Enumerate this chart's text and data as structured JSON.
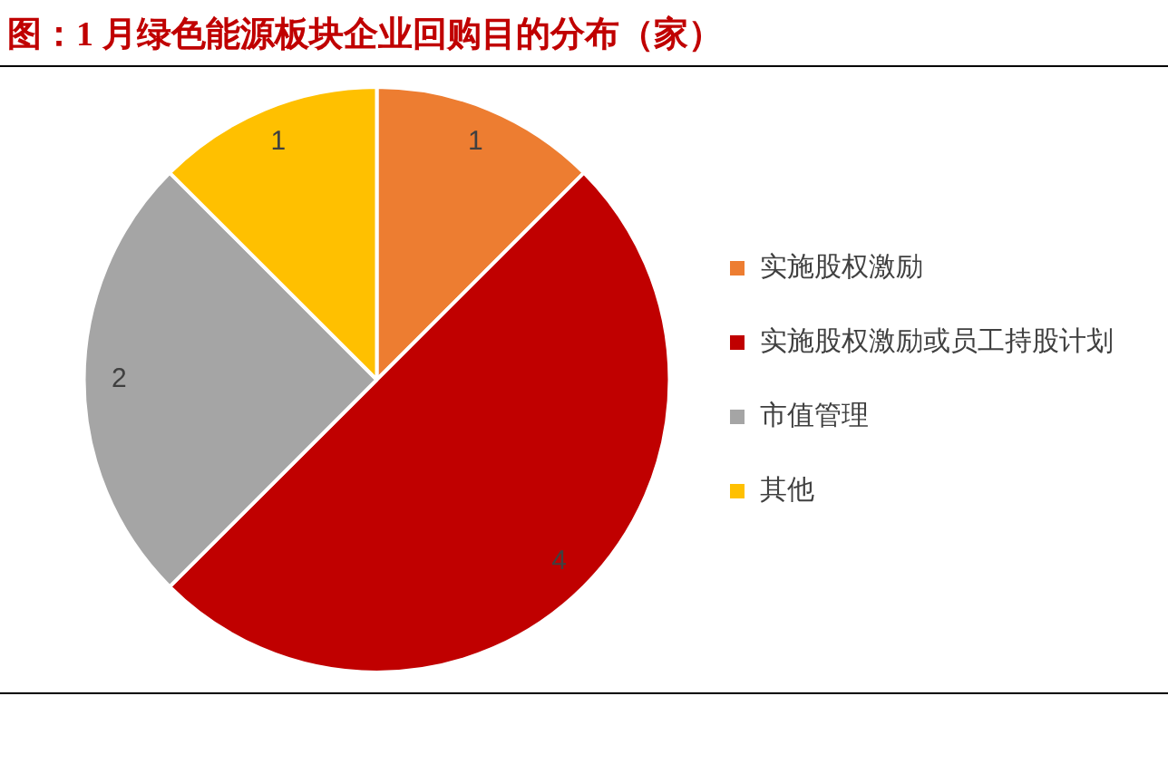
{
  "chart_data": {
    "type": "pie",
    "title": "图：1 月绿色能源板块企业回购目的分布（家）",
    "categories": [
      "实施股权激励",
      "实施股权激励或员工持股计划",
      "市值管理",
      "其他"
    ],
    "values": [
      1,
      4,
      2,
      1
    ],
    "colors": [
      "#ed7d31",
      "#c00000",
      "#a5a5a5",
      "#ffc000"
    ],
    "legend": "right",
    "data_labels": true
  }
}
